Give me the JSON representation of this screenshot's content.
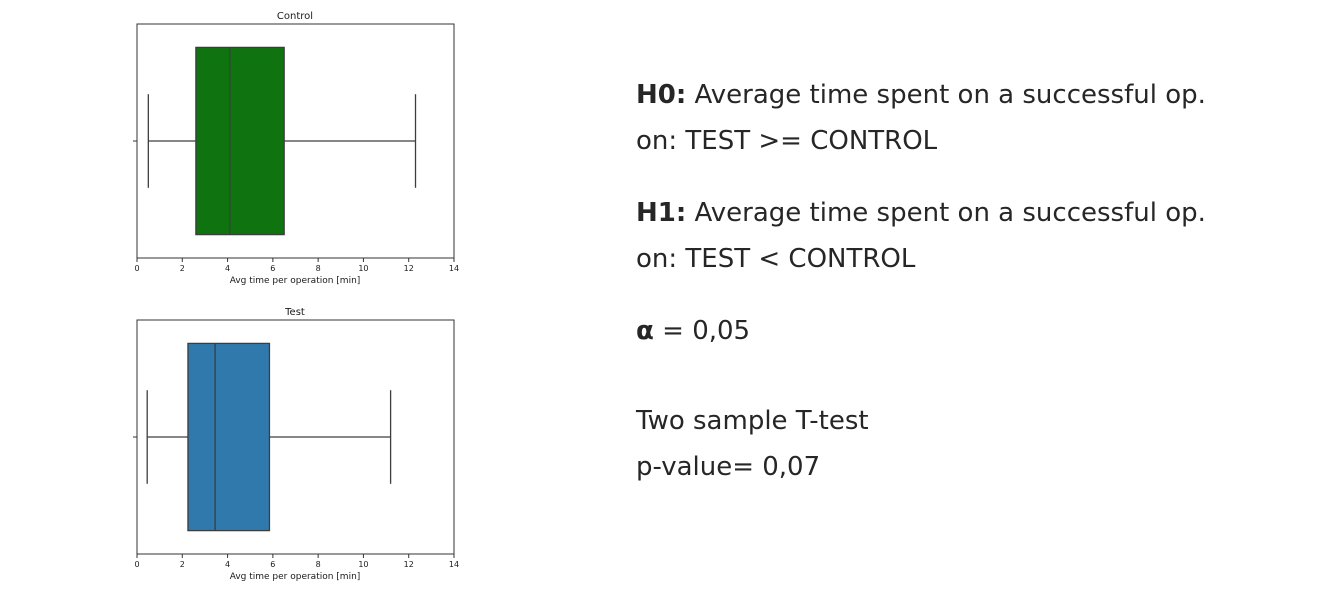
{
  "chart_data": [
    {
      "type": "box",
      "title": "Control",
      "xlabel": "Avg time per operation [min]",
      "xlim": [
        0,
        14
      ],
      "xticks": [
        "0",
        "2",
        "4",
        "6",
        "8",
        "10",
        "12",
        "14"
      ],
      "whisker_low": 0.5,
      "q1": 2.6,
      "median": 4.1,
      "q3": 6.5,
      "whisker_high": 12.3,
      "color": "#0f730f"
    },
    {
      "type": "box",
      "title": "Test",
      "xlabel": "Avg time per operation [min]",
      "xlim": [
        0,
        14
      ],
      "xticks": [
        "0",
        "2",
        "4",
        "6",
        "8",
        "10",
        "12",
        "14"
      ],
      "whisker_low": 0.45,
      "q1": 2.25,
      "median": 3.45,
      "q3": 5.85,
      "whisker_high": 11.2,
      "color": "#2f79ad"
    }
  ],
  "hypotheses": {
    "h0_label": "H0:",
    "h0_text": " Average time spent on a successful op.",
    "h0_line2": "on: TEST >= CONTROL",
    "h1_label": "H1:",
    "h1_text": " Average time spent on a successful op.",
    "h1_line2": "on: TEST < CONTROL",
    "alpha_symbol": "α",
    "alpha_text": " = 0,05",
    "test_name": "Two sample T-test",
    "p_value": "p-value= 0,07"
  }
}
